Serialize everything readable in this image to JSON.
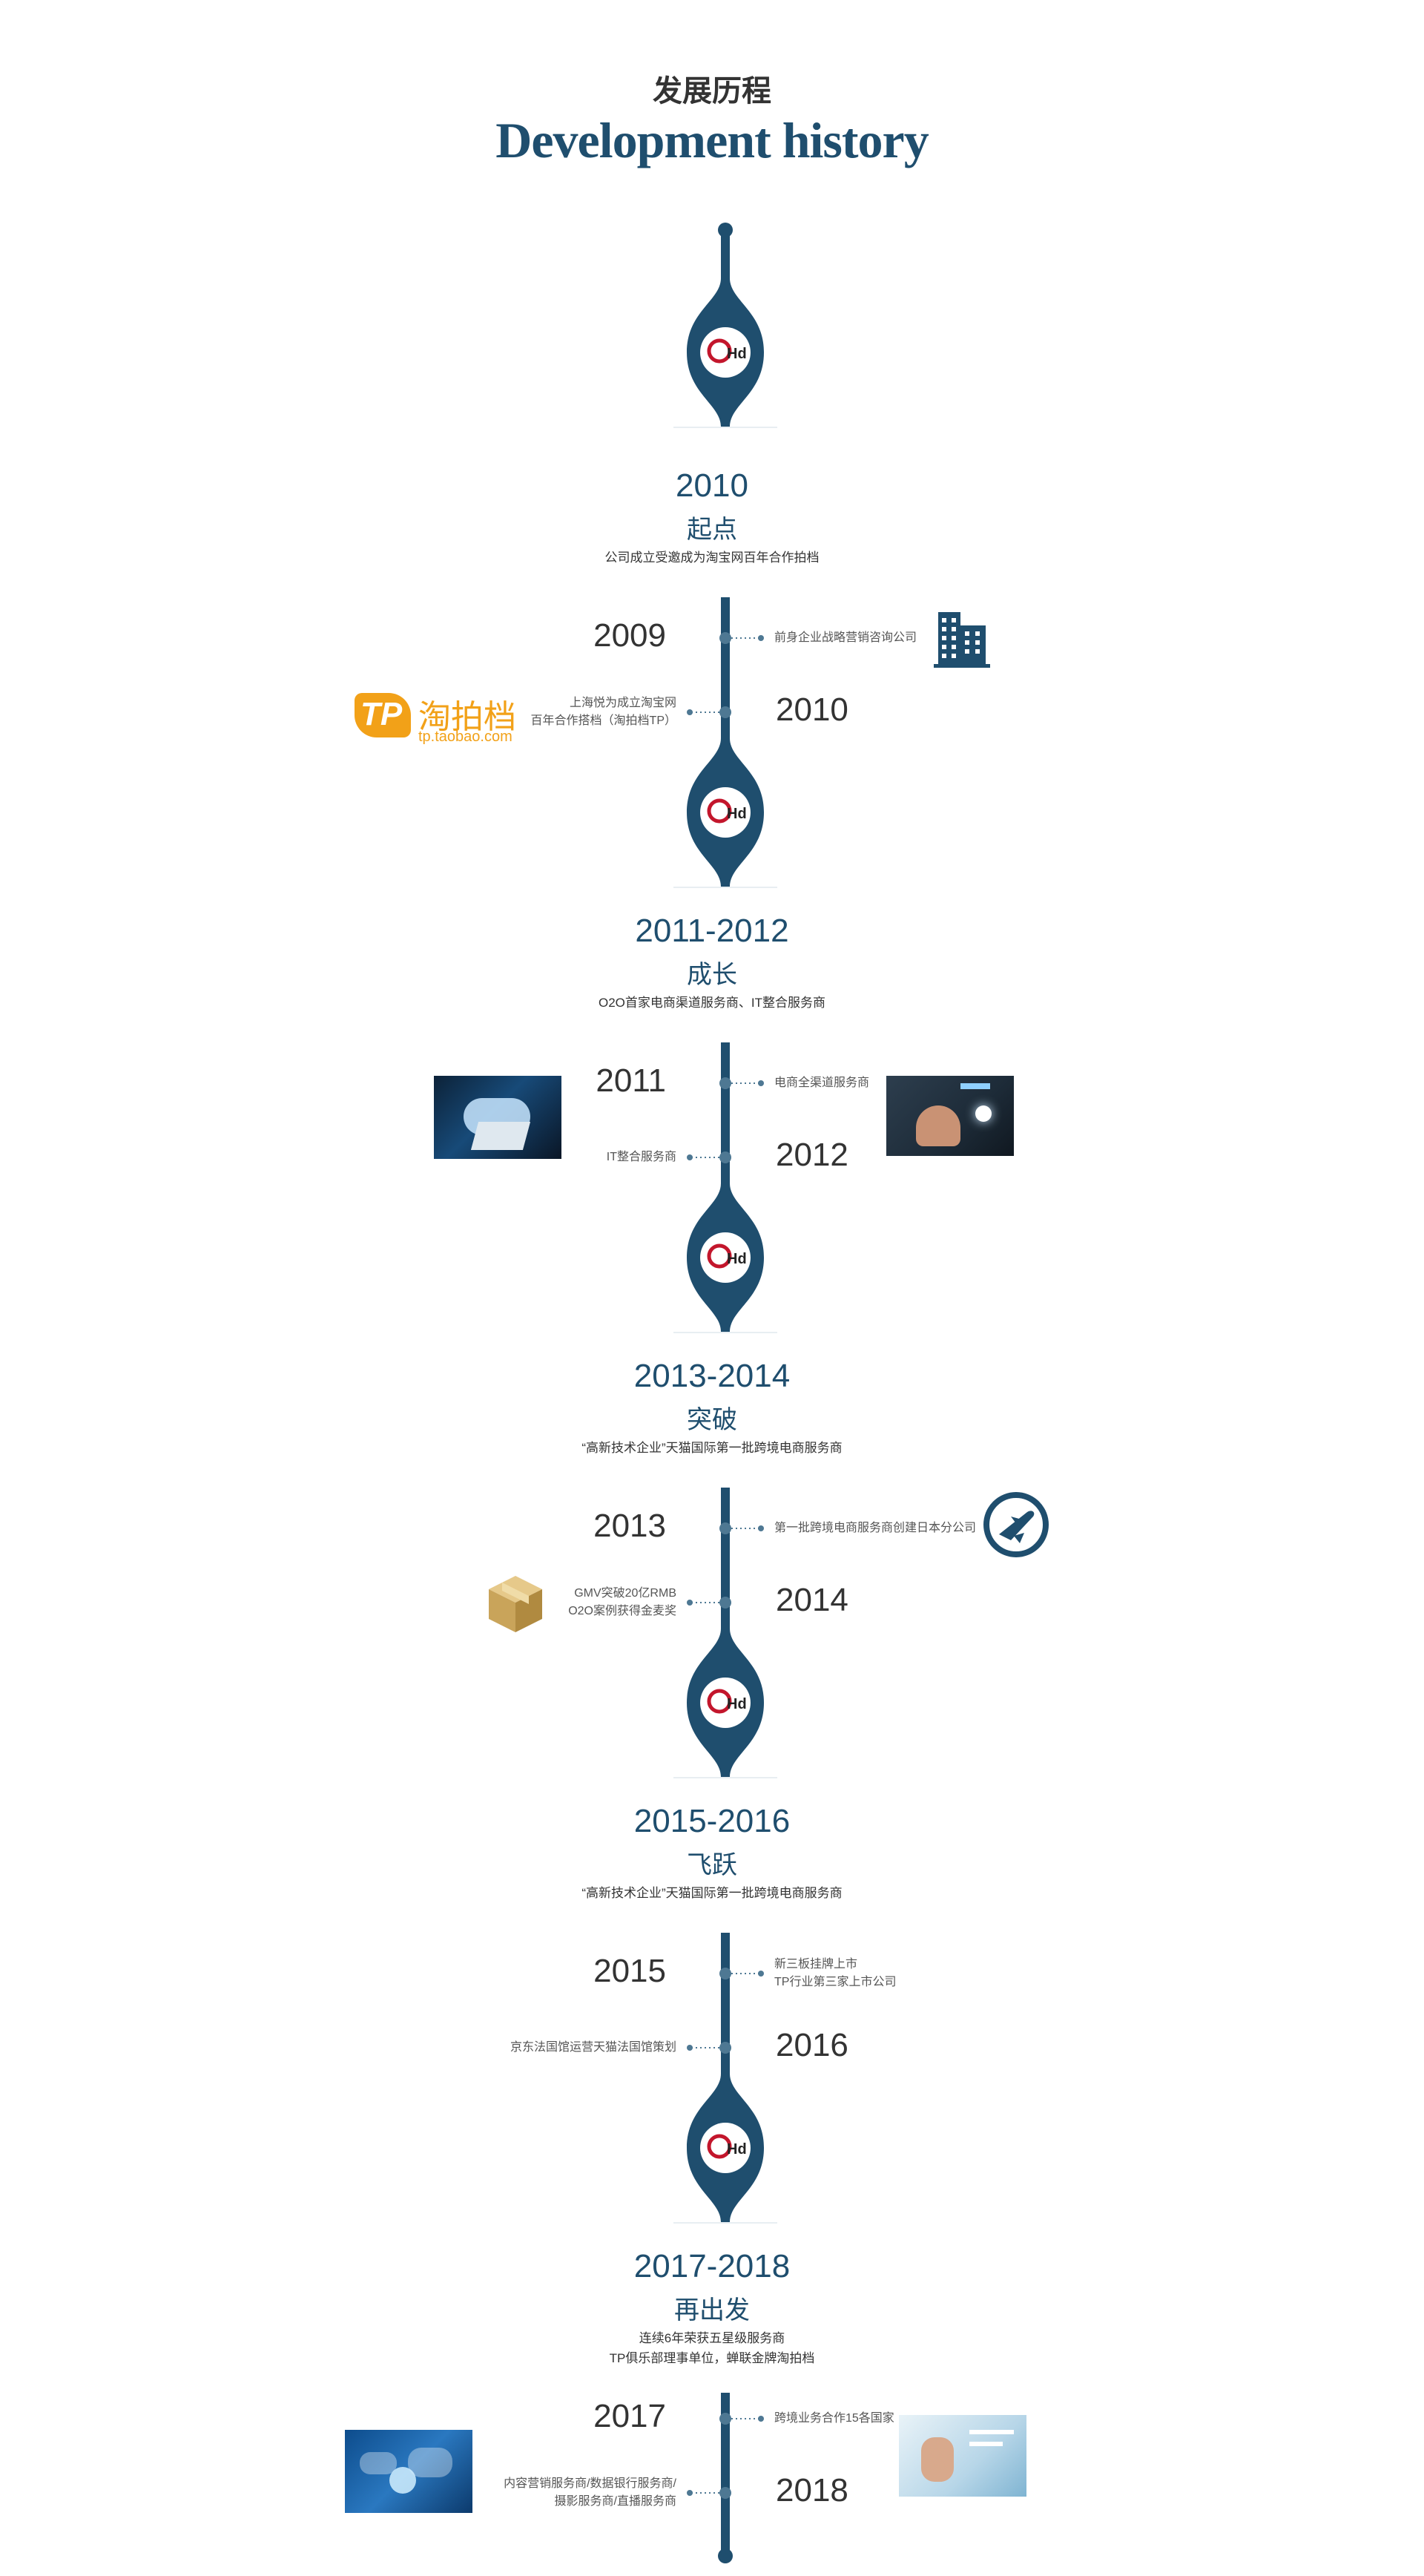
{
  "header": {
    "title_cn": "发展历程",
    "title_en": "Development history"
  },
  "logo_text": "Hd",
  "colors": {
    "timeline": "#1f4e6e",
    "accent_red": "#c3162c",
    "gold": "#f2a118"
  },
  "phases": [
    {
      "years": "2010",
      "name": "起点",
      "desc": [
        "公司成立受邀成为淘宝网百年合作拍档"
      ]
    },
    {
      "years": "2011-2012",
      "name": "成长",
      "desc": [
        "O2O首家电商渠道服务商、IT整合服务商"
      ]
    },
    {
      "years": "2013-2014",
      "name": "突破",
      "desc": [
        "“高新技术企业”天猫国际第一批跨境电商服务商"
      ]
    },
    {
      "years": "2015-2016",
      "name": "飞跃",
      "desc": [
        "“高新技术企业”天猫国际第一批跨境电商服务商"
      ]
    },
    {
      "years": "2017-2018",
      "name": "再出发",
      "desc": [
        "连续6年荣获五星级服务商",
        "TP俱乐部理事单位，蝉联金牌淘拍档"
      ]
    }
  ],
  "milestones": [
    {
      "a_year": "2009",
      "a_note": [
        "前身企业战略营销咨询公司"
      ],
      "b_year": "2010",
      "b_note": [
        "上海悦为成立淘宝网",
        "百年合作搭档（淘拍档TP）"
      ],
      "a_icon": "building-icon",
      "b_icon": "taopaidang-logo"
    },
    {
      "a_year": "2011",
      "a_note": [
        "电商全渠道服务商"
      ],
      "b_year": "2012",
      "b_note": [
        "IT整合服务商"
      ],
      "a_icon": "tech-hand-photo",
      "b_icon": "laptop-cloud-photo"
    },
    {
      "a_year": "2013",
      "a_note": [
        "第一批跨境电商服务商创建日本分公司"
      ],
      "b_year": "2014",
      "b_note": [
        "GMV突破20亿RMB",
        "O2O案例获得金麦奖"
      ],
      "a_icon": "airplane-icon",
      "b_icon": "box-icon"
    },
    {
      "a_year": "2015",
      "a_note": [
        "新三板挂牌上市",
        "TP行业第三家上市公司"
      ],
      "b_year": "2016",
      "b_note": [
        "京东法国馆运营天猫法国馆策划"
      ],
      "a_icon": "",
      "b_icon": ""
    },
    {
      "a_year": "2017",
      "a_note": [
        "跨境业务合作15各国家"
      ],
      "b_year": "2018",
      "b_note": [
        "内容营销服务商/数据银行服务商/",
        "摄影服务商/直播服务商"
      ],
      "a_icon": "touch-screen-photo",
      "b_icon": "world-map-photo"
    }
  ],
  "taopaidang": {
    "name": "淘拍档",
    "url": "tp.taobao.com",
    "mark": "TP"
  }
}
